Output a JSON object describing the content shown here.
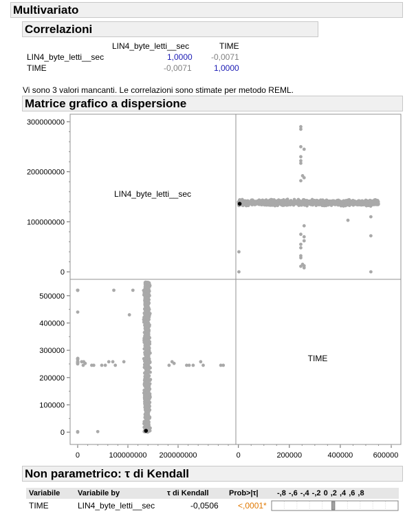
{
  "multivariate": {
    "title": "Multivariato"
  },
  "correlations": {
    "title": "Correlazioni",
    "col_headers": [
      "LIN4_byte_letti__sec",
      "TIME"
    ],
    "rows": [
      {
        "label": "LIN4_byte_letti__sec",
        "values": [
          "1,0000",
          "-0,0071"
        ]
      },
      {
        "label": "TIME",
        "values": [
          "-0,0071",
          "1,0000"
        ]
      }
    ],
    "note": "Vi sono 3 valori mancanti. Le correlazioni sono stimate per metodo REML."
  },
  "scatter_matrix": {
    "title": "Matrice grafico a dispersione",
    "diag_labels": [
      "LIN4_byte_letti__sec",
      "TIME"
    ]
  },
  "chart_data": {
    "type": "scatter",
    "variables": [
      "LIN4_byte_letti__sec",
      "TIME"
    ],
    "axes": {
      "LIN4_byte_letti__sec": {
        "range": [
          -15000000,
          315000000
        ],
        "ticks": [
          0,
          100000000,
          200000000,
          300000000
        ],
        "tick_labels": [
          "0",
          "100000000",
          "200000000",
          "300000000"
        ]
      },
      "TIME": {
        "range": [
          -45000,
          560000
        ],
        "ticks": [
          0,
          100000,
          200000,
          300000,
          400000,
          500000
        ],
        "tick_labels": [
          "0",
          "100000",
          "200000",
          "300000",
          "400000",
          "500000"
        ],
        "bottom_ticks": [
          0,
          200000,
          400000,
          600000
        ],
        "bottom_tick_labels": [
          "0",
          "200000",
          "400000",
          "600000"
        ]
      }
    },
    "main_band": {
      "time_range": [
        0,
        550000
      ],
      "lin4_center": 138000000,
      "lin4_spread": 9000000
    },
    "outliers": [
      {
        "time": 245000,
        "lin4": 290000000
      },
      {
        "time": 245000,
        "lin4": 285000000
      },
      {
        "time": 245000,
        "lin4": 250000000
      },
      {
        "time": 258000,
        "lin4": 245000000
      },
      {
        "time": 245000,
        "lin4": 230000000
      },
      {
        "time": 245000,
        "lin4": 222000000
      },
      {
        "time": 245000,
        "lin4": 217000000
      },
      {
        "time": 252000,
        "lin4": 192000000
      },
      {
        "time": 258000,
        "lin4": 188000000
      },
      {
        "time": 245000,
        "lin4": 182000000
      },
      {
        "time": 258000,
        "lin4": 92000000
      },
      {
        "time": 245000,
        "lin4": 75000000
      },
      {
        "time": 258000,
        "lin4": 70000000
      },
      {
        "time": 258000,
        "lin4": 62000000
      },
      {
        "time": 245000,
        "lin4": 55000000
      },
      {
        "time": 245000,
        "lin4": 48000000
      },
      {
        "time": 245000,
        "lin4": 32000000
      },
      {
        "time": 245000,
        "lin4": 28000000
      },
      {
        "time": 252000,
        "lin4": 15000000
      },
      {
        "time": 258000,
        "lin4": 12000000
      },
      {
        "time": 245000,
        "lin4": 11000000
      },
      {
        "time": 258000,
        "lin4": 8000000
      },
      {
        "time": 2000,
        "lin4": 40000000
      },
      {
        "time": 2000,
        "lin4": 0
      },
      {
        "time": 520000,
        "lin4": 0
      },
      {
        "time": 520000,
        "lin4": 72000000
      },
      {
        "time": 520000,
        "lin4": 110000000
      },
      {
        "time": 430000,
        "lin4": 103000000
      }
    ],
    "highlight": {
      "time": 5000,
      "lin4": 136000000
    }
  },
  "kendall": {
    "title": "Non parametrico: τ di Kendall",
    "headers": [
      "Variabile",
      "Variabile by",
      "τ di Kendall",
      "Prob>|τ|"
    ],
    "bar_ticks": "-,8 -,6 -,4 -,2  0  ,2  ,4  ,6  ,8",
    "row": {
      "variable": "TIME",
      "by": "LIN4_byte_letti__sec",
      "tau": "-0,0506",
      "prob": "<,0001*"
    },
    "tau_value": -0.0506,
    "colors": {
      "prob": "#e07800",
      "bar": "#a0a0a0"
    }
  },
  "colors": {
    "points": "#a9a9a9",
    "highlight": "#000000",
    "value_blue": "#1a1ab4"
  }
}
